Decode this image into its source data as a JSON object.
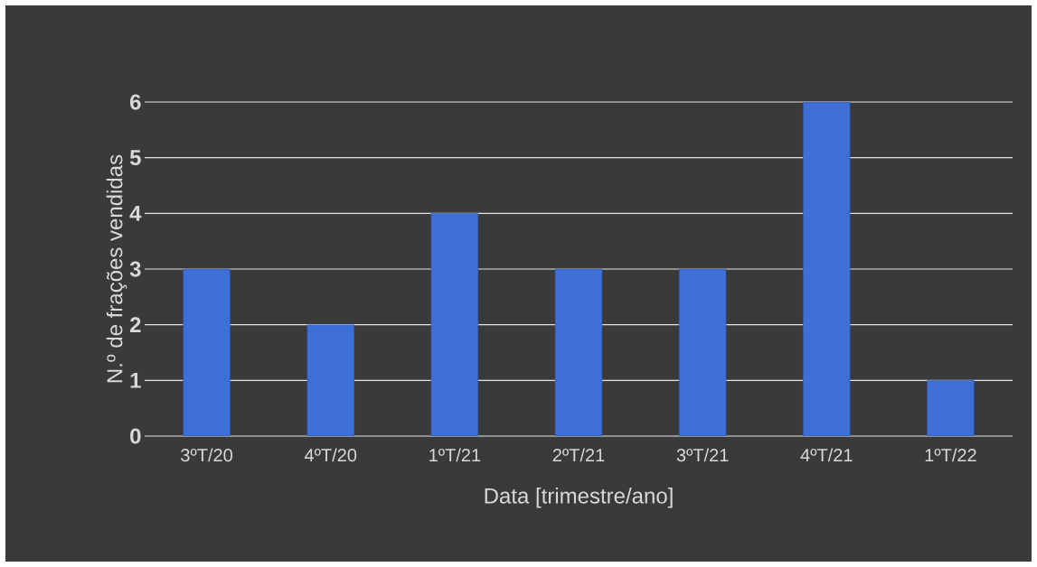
{
  "chart_data": {
    "type": "bar",
    "xlabel": "Data [trimestre/ano]",
    "ylabel": "N.º de frações vendidas",
    "categories": [
      "3ºT/20",
      "4ºT/20",
      "1ºT/21",
      "2ºT/21",
      "3ºT/21",
      "4ºT/21",
      "1ºT/22"
    ],
    "values": [
      3,
      2,
      4,
      3,
      3,
      6,
      1
    ],
    "color": "#3d6fd6",
    "ylim": [
      0,
      6
    ],
    "yticks": [
      0,
      1,
      2,
      3,
      4,
      5,
      6
    ],
    "grid": "y"
  }
}
